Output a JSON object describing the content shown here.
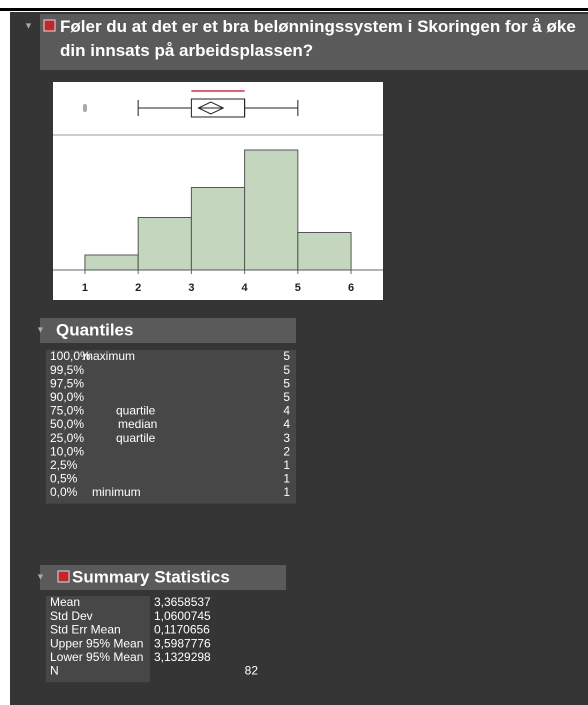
{
  "title": "Føler du at det er et bra belønningssystem i Skoringen for å øke din innsats på arbeidsplassen?",
  "chart_data": {
    "type": "histogram",
    "bins": [
      1,
      2,
      3,
      4,
      5,
      6
    ],
    "counts": [
      4,
      14,
      22,
      32,
      10
    ],
    "color": "#c5d6bf",
    "xlim": [
      0.4,
      6.6
    ],
    "xticks": [
      1,
      2,
      3,
      4,
      5,
      6
    ],
    "ylim": [
      0,
      36
    ],
    "box_plot": {
      "outliers": [
        1
      ],
      "whiskers": [
        2,
        5
      ],
      "box": [
        3,
        4
      ],
      "median": 4,
      "mean": 3.3658537,
      "mean_ci": [
        3.1329298,
        3.5987776
      ],
      "shortest_half": [
        3,
        4
      ]
    }
  },
  "quantiles": {
    "title": "Quantiles",
    "rows": [
      [
        "100,0%",
        "maximum",
        5
      ],
      [
        "99,5%",
        "",
        5
      ],
      [
        "97,5%",
        "",
        5
      ],
      [
        "90,0%",
        "",
        5
      ],
      [
        "75,0%",
        "quartile",
        4
      ],
      [
        "50,0%",
        "median",
        4
      ],
      [
        "25,0%",
        "quartile",
        3
      ],
      [
        "10,0%",
        "",
        2
      ],
      [
        "2,5%",
        "",
        1
      ],
      [
        "0,5%",
        "",
        1
      ],
      [
        "0,0%",
        "minimum",
        1
      ]
    ]
  },
  "summary": {
    "title": "Summary Statistics",
    "rows": [
      [
        "Mean",
        "3,3658537"
      ],
      [
        "Std Dev",
        "1,0600745"
      ],
      [
        "Std Err Mean",
        "0,1170656"
      ],
      [
        "Upper 95% Mean",
        "3,5987776"
      ],
      [
        "Lower 95% Mean",
        "3,1329298"
      ],
      [
        "N",
        "82"
      ]
    ]
  }
}
